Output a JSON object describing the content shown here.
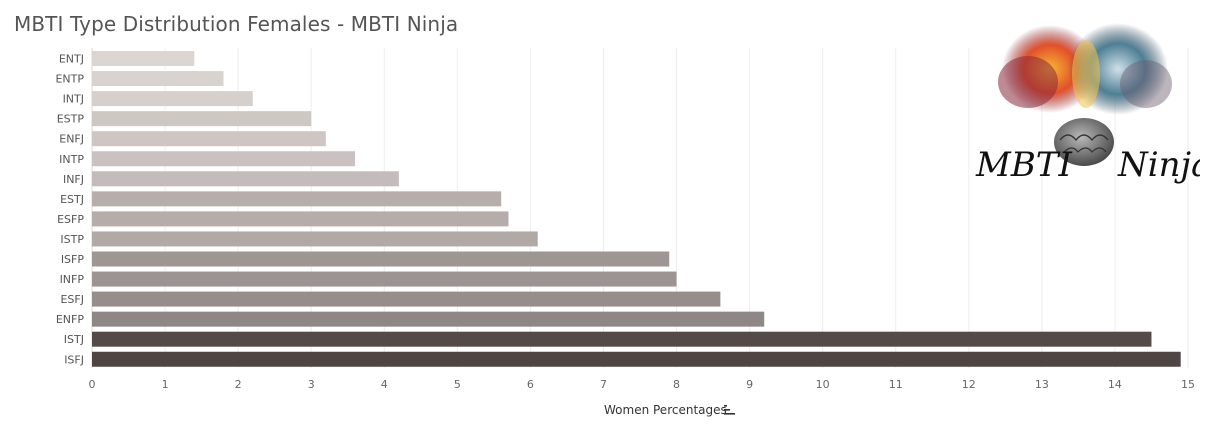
{
  "title": "MBTI Type Distribution Females - MBTI Ninja",
  "logo": {
    "text": "MBTI Ninja",
    "icon": "brain-smoke-logo"
  },
  "sort_icon": "sort-descending-icon",
  "chart_data": {
    "type": "bar",
    "orientation": "horizontal",
    "categories": [
      "ENTJ",
      "ENTP",
      "INTJ",
      "ESTP",
      "ENFJ",
      "INTP",
      "INFJ",
      "ESTJ",
      "ESFP",
      "ISTP",
      "ISFP",
      "INFP",
      "ESFJ",
      "ENFP",
      "ISTJ",
      "ISFJ"
    ],
    "values": [
      1.4,
      1.8,
      2.2,
      3.0,
      3.2,
      3.6,
      4.2,
      5.6,
      5.7,
      6.1,
      7.9,
      8.0,
      8.6,
      9.2,
      14.5,
      14.9
    ],
    "xlabel": "Women Percentages",
    "ylabel": "",
    "xlim": [
      0,
      15
    ],
    "xticks": [
      0,
      1,
      2,
      3,
      4,
      5,
      6,
      7,
      8,
      9,
      10,
      11,
      12,
      13,
      14,
      15
    ],
    "grid": "vertical",
    "colors": {
      "low": "#dcd6d3",
      "high": "#4f4644",
      "grid": "#eeeeee"
    }
  }
}
